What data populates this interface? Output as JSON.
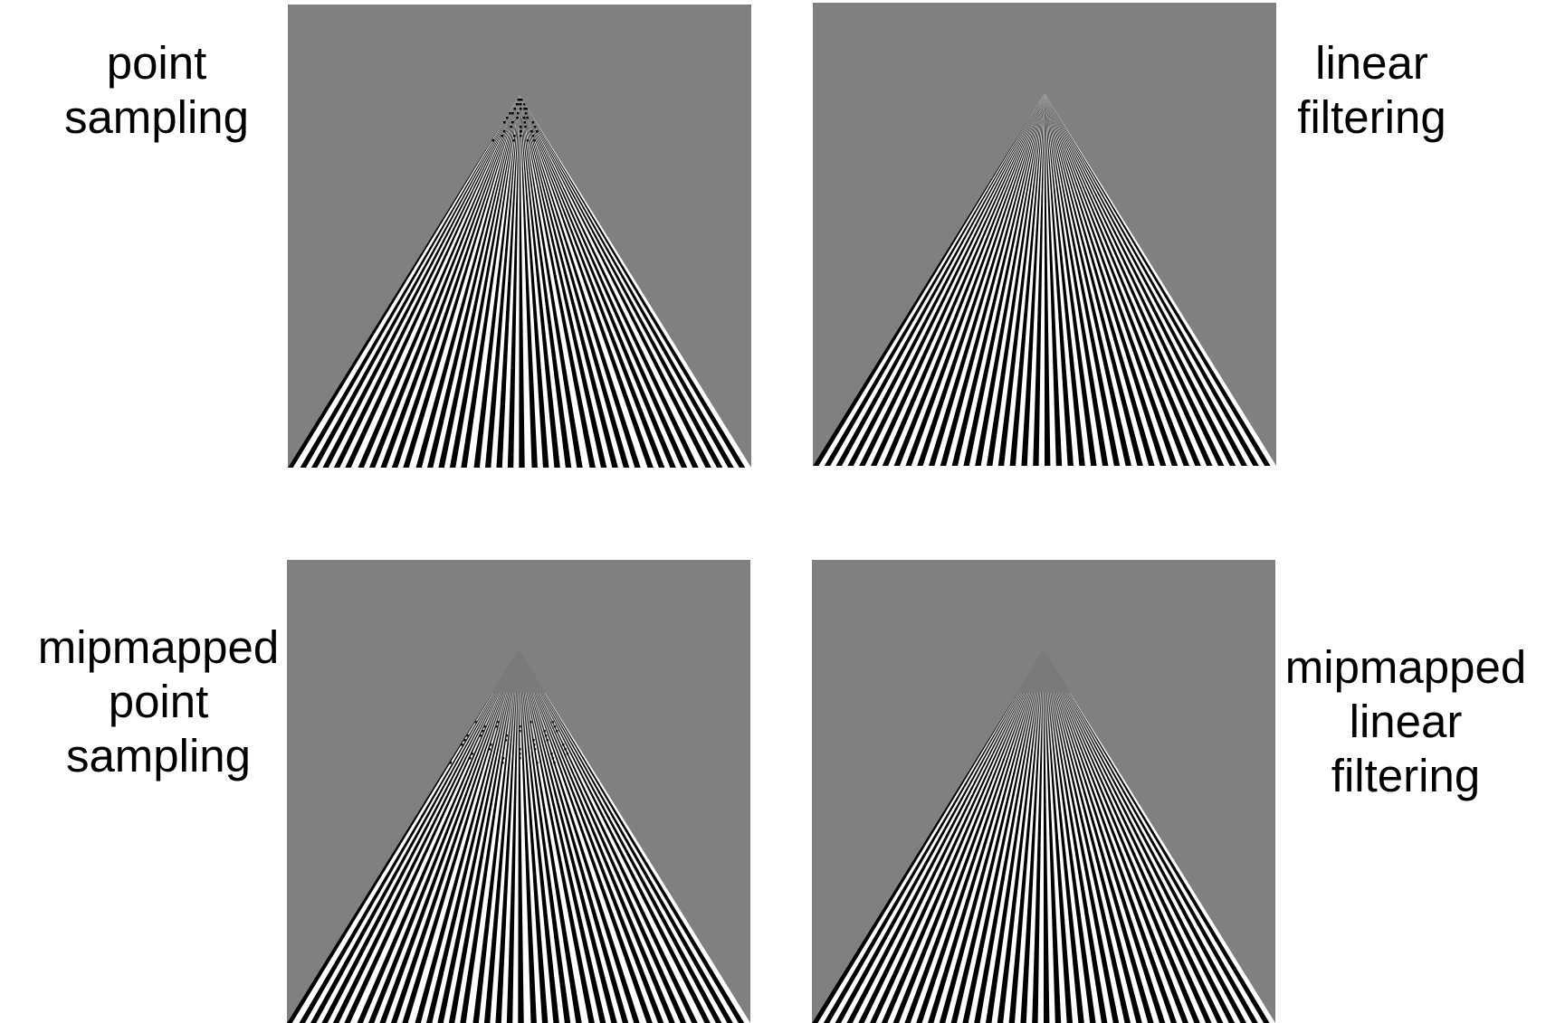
{
  "figure": {
    "panels": [
      {
        "id": "point-sampling",
        "label_lines": [
          "point",
          "sampling"
        ],
        "mipmapped": false,
        "filtered": false
      },
      {
        "id": "linear-filtering",
        "label_lines": [
          "linear",
          "filtering"
        ],
        "mipmapped": false,
        "filtered": true
      },
      {
        "id": "mipmapped-point-sampling",
        "label_lines": [
          "mipmapped",
          "point",
          "sampling"
        ],
        "mipmapped": true,
        "filtered": false
      },
      {
        "id": "mipmapped-linear-filtering",
        "label_lines": [
          "mipmapped",
          "linear",
          "filtering"
        ],
        "mipmapped": true,
        "filtered": true
      }
    ],
    "colors": {
      "background": "#808080",
      "stripe_dark": "#000000",
      "stripe_light": "#ffffff",
      "page": "#ffffff"
    }
  }
}
